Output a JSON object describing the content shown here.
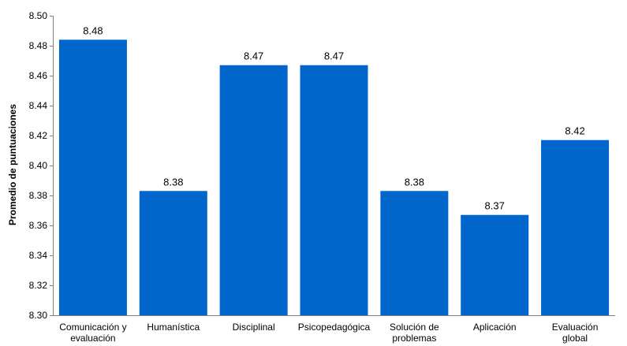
{
  "chart_data": {
    "type": "bar",
    "title": "",
    "xlabel": "",
    "ylabel": "Promedio de puntuaciones",
    "ylim": [
      8.3,
      8.5
    ],
    "yticks": [
      "8.30",
      "8.32",
      "8.34",
      "8.36",
      "8.38",
      "8.40",
      "8.42",
      "8.44",
      "8.46",
      "8.48",
      "8.50"
    ],
    "grid": false,
    "legend": "none",
    "bar_color": "#0066CC",
    "categories": [
      [
        "Comunicación y",
        "evaluación"
      ],
      [
        "Humanística"
      ],
      [
        "Disciplinal"
      ],
      [
        "Psicopedagógica"
      ],
      [
        "Solución de",
        "problemas"
      ],
      [
        "Aplicación"
      ],
      [
        "Evaluación",
        "global"
      ]
    ],
    "values": [
      8.484,
      8.383,
      8.467,
      8.467,
      8.383,
      8.367,
      8.417
    ],
    "data_labels": [
      "8.48",
      "8.38",
      "8.47",
      "8.47",
      "8.38",
      "8.37",
      "8.42"
    ]
  }
}
